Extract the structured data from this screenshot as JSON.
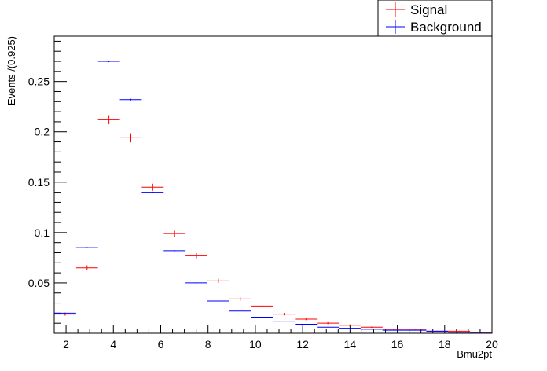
{
  "chart_data": {
    "type": "scatter",
    "title": "",
    "xlabel": "Bmu2pt",
    "ylabel": "Events /(0.925)",
    "xlim": [
      1.5,
      20
    ],
    "ylim": [
      0,
      0.295
    ],
    "bin_width": 0.925,
    "x_ticks": [
      2,
      4,
      6,
      8,
      10,
      12,
      14,
      16,
      18,
      20
    ],
    "y_ticks": [
      0.05,
      0.1,
      0.15,
      0.2,
      0.25
    ],
    "y_tick_labels": [
      "0.05",
      "0.1",
      "0.15",
      "0.2",
      "0.25"
    ],
    "grid": false,
    "legend_position": "top-right",
    "x": [
      1.9625,
      2.8875,
      3.8125,
      4.7375,
      5.6625,
      6.5875,
      7.5125,
      8.4375,
      9.3625,
      10.2875,
      11.2125,
      12.1375,
      13.0625,
      13.9875,
      14.9125,
      15.8375,
      16.7625,
      17.6875,
      18.6125,
      19.5375
    ],
    "series": [
      {
        "name": "Signal",
        "color": "#ff0000",
        "values": [
          0.019,
          0.065,
          0.212,
          0.194,
          0.145,
          0.099,
          0.077,
          0.052,
          0.034,
          0.027,
          0.019,
          0.014,
          0.01,
          0.008,
          0.006,
          0.004,
          0.004,
          0.002,
          0.002,
          0.001
        ],
        "errors": [
          0.0015,
          0.0025,
          0.0045,
          0.0045,
          0.0035,
          0.003,
          0.0025,
          0.002,
          0.0018,
          0.0015,
          0.0012,
          0.001,
          0.001,
          0.0008,
          0.0007,
          0.0006,
          0.0005,
          0.0004,
          0.0004,
          0.0003
        ]
      },
      {
        "name": "Background",
        "color": "#0000ff",
        "values": [
          0.02,
          0.085,
          0.27,
          0.232,
          0.14,
          0.082,
          0.05,
          0.032,
          0.022,
          0.016,
          0.012,
          0.009,
          0.006,
          0.005,
          0.004,
          0.003,
          0.003,
          0.002,
          0.001,
          0.001
        ],
        "errors": [
          0.0004,
          0.0006,
          0.0008,
          0.0008,
          0.0006,
          0.0005,
          0.0004,
          0.0003,
          0.0003,
          0.0003,
          0.0002,
          0.0002,
          0.0002,
          0.0002,
          0.0001,
          0.0001,
          0.0001,
          0.0001,
          0.0001,
          0.0001
        ]
      }
    ]
  }
}
